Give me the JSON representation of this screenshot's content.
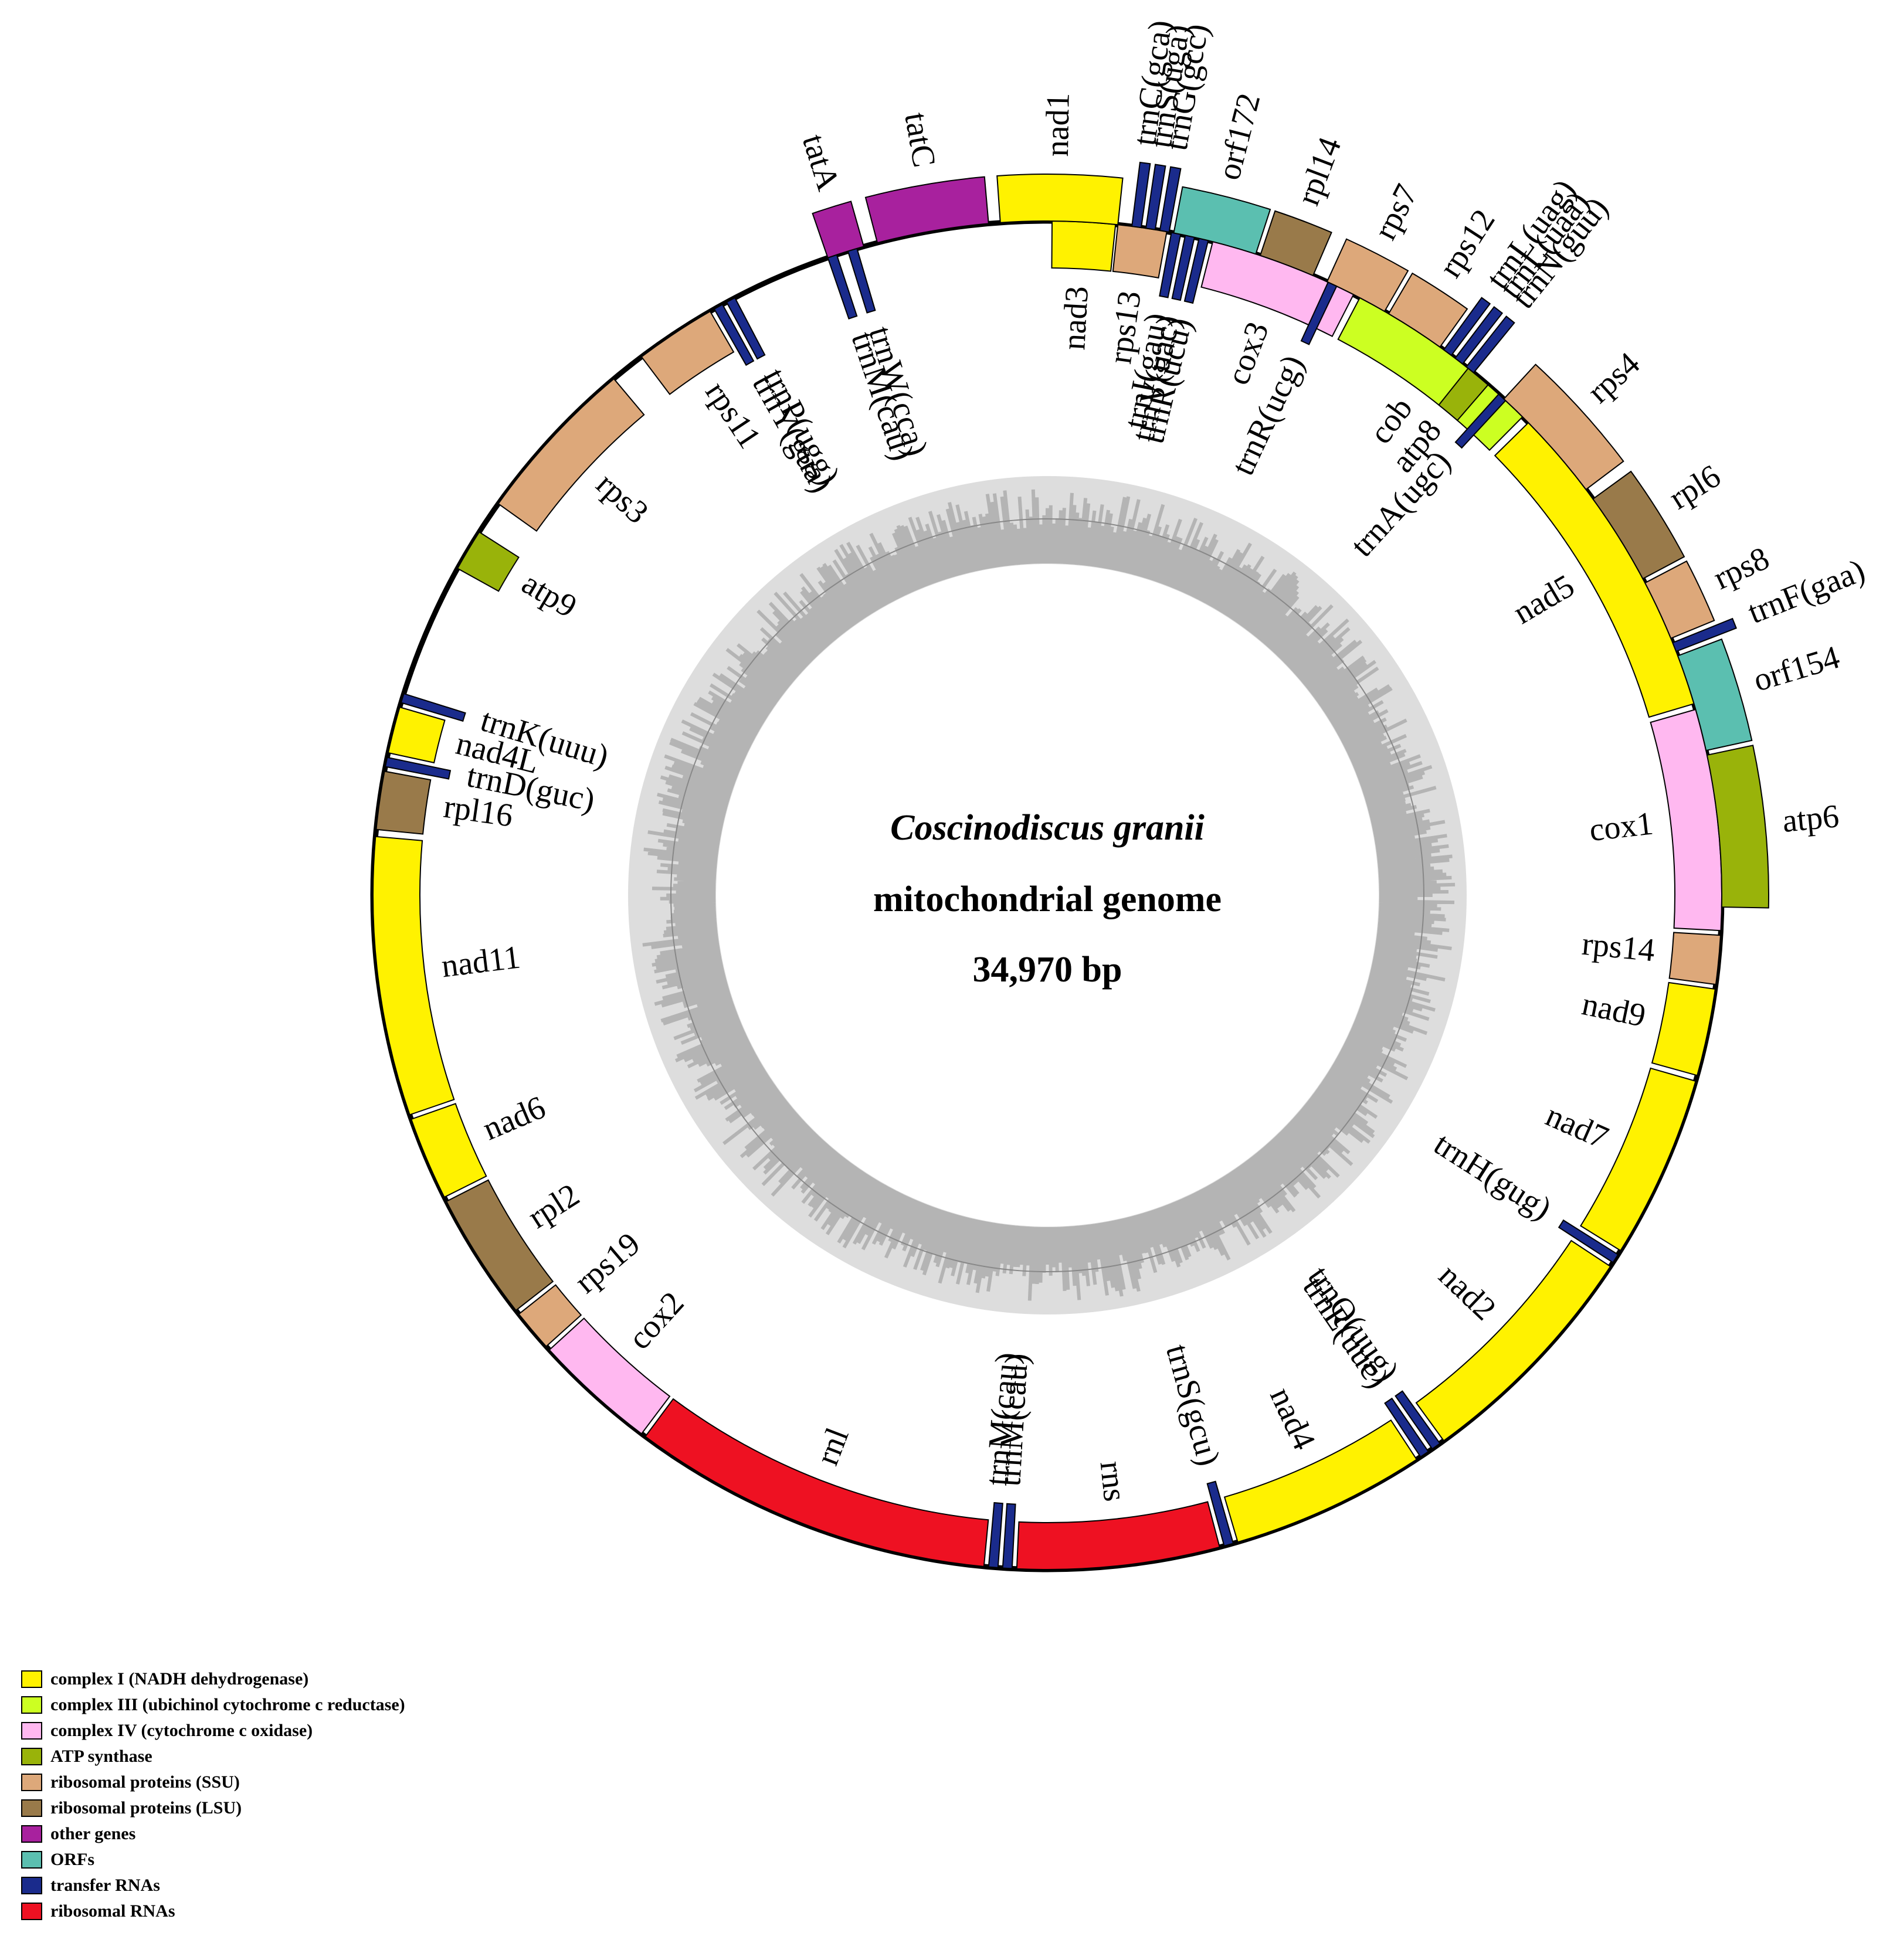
{
  "title": {
    "species": "Coscinodiscus granii",
    "subtitle": "mitochondrial genome",
    "size": "34,970 bp"
  },
  "genome_length": 34970,
  "categories": {
    "complex1": {
      "label": "complex I (NADH dehydrogenase)",
      "color": "#FFF200"
    },
    "complex3": {
      "label": "complex III (ubichinol cytochrome c reductase)",
      "color": "#CCFF22"
    },
    "complex4": {
      "label": "complex IV (cytochrome c oxidase)",
      "color": "#FFB8F0"
    },
    "atp": {
      "label": "ATP synthase",
      "color": "#99B30A"
    },
    "ssu": {
      "label": "ribosomal proteins (SSU)",
      "color": "#DDA87A"
    },
    "lsu": {
      "label": "ribosomal proteins (LSU)",
      "color": "#997A4A"
    },
    "other": {
      "label": "other genes",
      "color": "#A8219E"
    },
    "orf": {
      "label": "ORFs",
      "color": "#5BBFB0"
    },
    "trna": {
      "label": "transfer RNAs",
      "color": "#1A2B8C"
    },
    "rrna": {
      "label": "ribosomal RNAs",
      "color": "#EE1122"
    }
  },
  "legend_order": [
    "complex1",
    "complex3",
    "complex4",
    "atp",
    "ssu",
    "lsu",
    "other",
    "orf",
    "trna",
    "rrna"
  ],
  "genes": [
    {
      "name": "nad3",
      "cat": "complex1",
      "start": 0.4,
      "end": 5.8,
      "strand": "out"
    },
    {
      "name": "rps13",
      "cat": "ssu",
      "start": 6.0,
      "end": 10.2,
      "strand": "out"
    },
    {
      "name": "trnI(gau)",
      "cat": "trna",
      "start": 10.6,
      "end": 11.4,
      "strand": "out"
    },
    {
      "name": "trnV(uac)",
      "cat": "trna",
      "start": 11.8,
      "end": 12.6,
      "strand": "out"
    },
    {
      "name": "trnR(ucu)",
      "cat": "trna",
      "start": 13.0,
      "end": 13.8,
      "strand": "out"
    },
    {
      "name": "cox3",
      "cat": "complex4",
      "start": 14.2,
      "end": 27.0,
      "strand": "out"
    },
    {
      "name": "cob",
      "cat": "complex3",
      "start": 27.6,
      "end": 44.8,
      "strand": "out"
    },
    {
      "name": "nad5",
      "cat": "complex1",
      "start": 45.5,
      "end": 73.5,
      "strand": "out"
    },
    {
      "name": "cox1",
      "cat": "complex4",
      "start": 74.0,
      "end": 93.0,
      "strand": "out"
    },
    {
      "name": "rps14",
      "cat": "ssu",
      "start": 93.4,
      "end": 97.6,
      "strand": "out"
    },
    {
      "name": "nad9",
      "cat": "complex1",
      "start": 98.0,
      "end": 105.5,
      "strand": "out"
    },
    {
      "name": "nad7",
      "cat": "complex1",
      "start": 106.0,
      "end": 121.8,
      "strand": "out"
    },
    {
      "name": "trnH(gug)",
      "cat": "trna",
      "start": 122.2,
      "end": 123.0,
      "strand": "out"
    },
    {
      "name": "nad2",
      "cat": "complex1",
      "start": 123.4,
      "end": 144.0,
      "strand": "out"
    },
    {
      "name": "trnQ(uug)",
      "cat": "trna",
      "start": 144.4,
      "end": 145.2,
      "strand": "out"
    },
    {
      "name": "trnE(uuc)",
      "cat": "trna",
      "start": 145.6,
      "end": 146.4,
      "strand": "out"
    },
    {
      "name": "nad4",
      "cat": "complex1",
      "start": 146.8,
      "end": 163.6,
      "strand": "out"
    },
    {
      "name": "trnS(gcu)",
      "cat": "trna",
      "start": 164.0,
      "end": 164.8,
      "strand": "out"
    },
    {
      "name": "rns",
      "cat": "rrna",
      "start": 165.2,
      "end": 182.6,
      "strand": "out"
    },
    {
      "name": "trnM(cau)",
      "cat": "trna",
      "start": 183.0,
      "end": 183.8,
      "strand": "out"
    },
    {
      "name": "trnM(cau)",
      "cat": "trna",
      "start": 184.2,
      "end": 185.0,
      "strand": "out"
    },
    {
      "name": "rnl",
      "cat": "rrna",
      "start": 185.4,
      "end": 216.6,
      "strand": "out"
    },
    {
      "name": "cox2",
      "cat": "complex4",
      "start": 217.0,
      "end": 227.6,
      "strand": "out"
    },
    {
      "name": "rps19",
      "cat": "ssu",
      "start": 228.0,
      "end": 231.6,
      "strand": "out"
    },
    {
      "name": "rpl2",
      "cat": "lsu",
      "start": 232.0,
      "end": 243.0,
      "strand": "out"
    },
    {
      "name": "nad6",
      "cat": "complex1",
      "start": 243.4,
      "end": 250.6,
      "strand": "out"
    },
    {
      "name": "nad11",
      "cat": "complex1",
      "start": 251.0,
      "end": 275.0,
      "strand": "out"
    },
    {
      "name": "rpl16",
      "cat": "lsu",
      "start": 275.6,
      "end": 280.6,
      "strand": "out"
    },
    {
      "name": "trnD(guc)",
      "cat": "trna",
      "start": 281.0,
      "end": 281.8,
      "strand": "out"
    },
    {
      "name": "nad4L",
      "cat": "complex1",
      "start": 282.2,
      "end": 286.2,
      "strand": "out"
    },
    {
      "name": "trnK(uuu)",
      "cat": "trna",
      "start": 286.6,
      "end": 287.4,
      "strand": "out"
    },
    {
      "name": "atp9",
      "cat": "atp",
      "start": 299.0,
      "end": 302.6,
      "strand": "out"
    },
    {
      "name": "rps3",
      "cat": "ssu",
      "start": 305.5,
      "end": 320.0,
      "strand": "out"
    },
    {
      "name": "rps11",
      "cat": "ssu",
      "start": 323.0,
      "end": 330.0,
      "strand": "out"
    },
    {
      "name": "trnY(gua)",
      "cat": "trna",
      "start": 330.4,
      "end": 331.2,
      "strand": "out"
    },
    {
      "name": "trnP(ugg)",
      "cat": "trna",
      "start": 331.6,
      "end": 332.4,
      "strand": "out"
    },
    {
      "name": "trnM(cau)",
      "cat": "trna",
      "start": 341.0,
      "end": 341.8,
      "strand": "out"
    },
    {
      "name": "trnW(cca)",
      "cat": "trna",
      "start": 342.8,
      "end": 343.6,
      "strand": "out"
    },
    {
      "name": "tatA",
      "cat": "other",
      "start": 341.0,
      "end": 344.2,
      "strand": "in"
    },
    {
      "name": "tatC",
      "cat": "other",
      "start": 345.4,
      "end": 355.0,
      "strand": "in"
    },
    {
      "name": "nad1",
      "cat": "complex1",
      "start": 356.0,
      "end": 366.0,
      "strand": "in"
    },
    {
      "name": "trnC(gca)",
      "cat": "trna",
      "start": 367.2,
      "end": 368.0,
      "strand": "in"
    },
    {
      "name": "trnS(uga)",
      "cat": "trna",
      "start": 368.4,
      "end": 369.2,
      "strand": "in"
    },
    {
      "name": "trnG(gcc)",
      "cat": "trna",
      "start": 369.6,
      "end": 370.4,
      "strand": "in"
    },
    {
      "name": "orf172",
      "cat": "orf",
      "start": 370.8,
      "end": 378.0,
      "strand": "in"
    },
    {
      "name": "rpl14",
      "cat": "lsu",
      "start": 378.4,
      "end": 383.2,
      "strand": "in"
    },
    {
      "name": "rps7",
      "cat": "ssu",
      "start": 384.5,
      "end": 390.0,
      "strand": "in"
    },
    {
      "name": "trnR(ucg)",
      "cat": "trna",
      "start": 384.6,
      "end": 385.4,
      "strand": "out"
    },
    {
      "name": "rps12",
      "cat": "ssu",
      "start": 390.4,
      "end": 395.6,
      "strand": "in"
    },
    {
      "name": "trnL(uag)",
      "cat": "trna",
      "start": 396.0,
      "end": 396.8,
      "strand": "in"
    },
    {
      "name": "trnL(uaa)",
      "cat": "trna",
      "start": 397.2,
      "end": 398.0,
      "strand": "in"
    },
    {
      "name": "trnN(guu)",
      "cat": "trna",
      "start": 398.4,
      "end": 399.2,
      "strand": "in"
    },
    {
      "name": "atp8",
      "cat": "atp",
      "start": 398.6,
      "end": 400.8,
      "strand": "out"
    },
    {
      "name": "trnA(ugc)",
      "cat": "trna",
      "start": 402.0,
      "end": 402.8,
      "strand": "out"
    },
    {
      "name": "rps4",
      "cat": "ssu",
      "start": 402.6,
      "end": 413.0,
      "strand": "in"
    },
    {
      "name": "rpl6",
      "cat": "lsu",
      "start": 414.0,
      "end": 422.0,
      "strand": "in"
    },
    {
      "name": "rps8",
      "cat": "ssu",
      "start": 422.4,
      "end": 427.6,
      "strand": "in"
    },
    {
      "name": "trnF(gaa)",
      "cat": "trna",
      "start": 428.0,
      "end": 428.8,
      "strand": "in"
    },
    {
      "name": "orf154",
      "cat": "orf",
      "start": 429.2,
      "end": 437.6,
      "strand": "in"
    },
    {
      "name": "atp6",
      "cat": "atp",
      "start": 438.0,
      "end": 451.0,
      "strand": "in"
    }
  ]
}
